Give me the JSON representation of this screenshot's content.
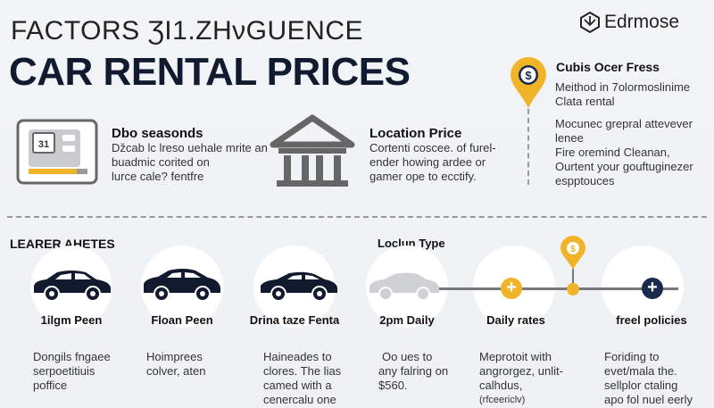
{
  "header": {
    "title_line1": "FACTORS ƷI1.ZHνGUENCE",
    "title_line2": "CAR RENTAL PRICES",
    "logo": "Edrmose"
  },
  "colors": {
    "navy": "#1a2a4d",
    "yellow": "#f0b429",
    "gray": "#666a70"
  },
  "top_sections": [
    {
      "icon": "calendar-icon",
      "calendar_day": "31",
      "title": "Dbo seasonds",
      "body": [
        "Džcab lc lreso uehale mrite an",
        "buadmic corited on",
        "lurce cale? fentfre"
      ]
    },
    {
      "icon": "building-icon",
      "title": "Location Price",
      "body": [
        "Cortenti coscee. of furel-",
        "ender howing ardee or",
        "gamer ope to ecctify."
      ]
    },
    {
      "icon": "location-dollar-pin-icon",
      "title": "Cubis Ocer Fress",
      "body": [
        "Meithod in 7olormoslinime",
        "Clata rental",
        "Mocunec grepral attevever",
        "lenee",
        "Fire oremind Cleanan,",
        "Ourtent your gouftuginezer",
        "espptouces"
      ]
    }
  ],
  "bottom": {
    "heading": "LEARER AHETES",
    "subheading": "Loclun Type",
    "items": [
      {
        "icon": "car-icon",
        "label": "1ilgm Peen",
        "body": [
          "Dongils fngaee",
          "serpoetitiuis",
          "poffice"
        ]
      },
      {
        "icon": "car-icon",
        "label": "Floan Peen",
        "body": [
          "Hoimprees",
          "colver, aten"
        ]
      },
      {
        "icon": "car-icon",
        "label": "Drina taze Fenta",
        "body": [
          "Haineades to",
          "clores. The lias",
          "camed with a",
          "cenercalu one"
        ]
      },
      {
        "icon": "car-faded-icon",
        "label": "2pm Daily",
        "body": [
          "Oo ues to",
          "any falring on",
          "$560."
        ]
      },
      {
        "icon": "plus-yellow-icon",
        "label": "Daily rates",
        "body": [
          "Meprotoit with",
          "angrorgez, unlit-",
          "calhdus,",
          "(rfceericlv)"
        ]
      },
      {
        "icon": "plus-navy-icon",
        "label": "freel policies",
        "body": [
          "Foriding to",
          "evet/mala the.",
          "sellplor ctaling",
          "apo fol nuel eerly"
        ]
      }
    ]
  }
}
